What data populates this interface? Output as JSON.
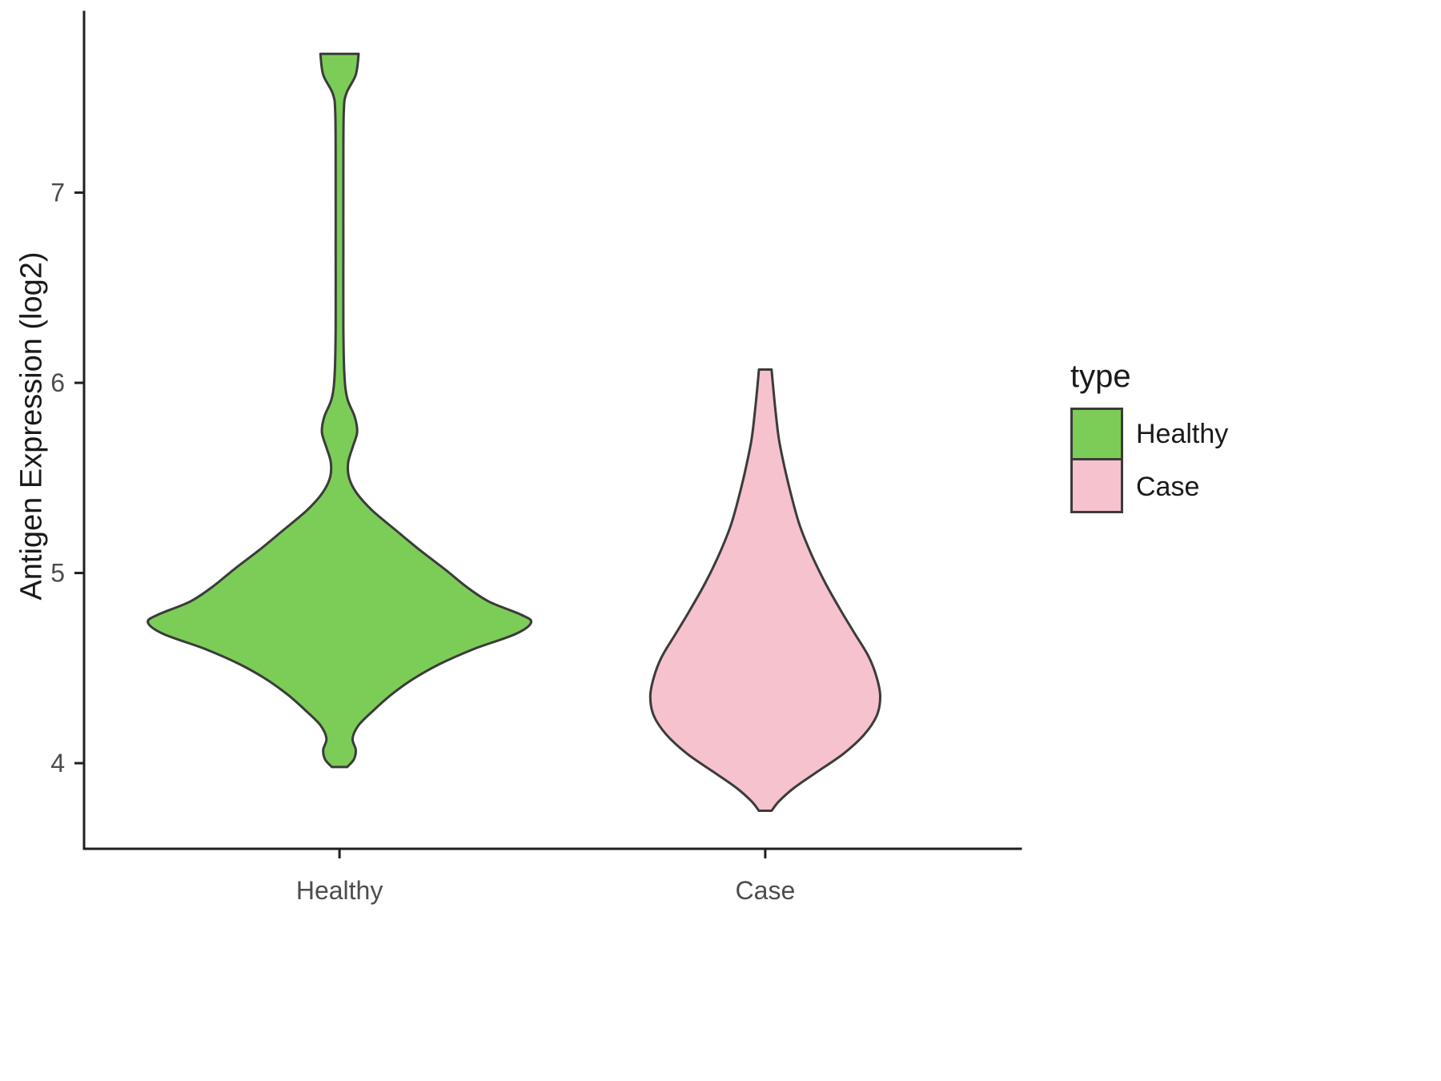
{
  "chart_data": {
    "type": "violin",
    "title": "",
    "xlabel": "",
    "ylabel": "Antigen Expression (log2)",
    "ylim": [
      3.55,
      7.95
    ],
    "yticks": [
      4,
      5,
      6,
      7
    ],
    "categories": [
      "Healthy",
      "Case"
    ],
    "grid": "off",
    "legend": {
      "title": "type",
      "position": "right"
    },
    "stroke": "#3b3b3b",
    "axis_color": "#1f1f1f",
    "tick_label_color": "#4d4d4d",
    "series": [
      {
        "name": "Healthy",
        "fill": "#7CCD57",
        "max_halfwidth": 0.45,
        "profile": [
          [
            7.73,
            0.1
          ],
          [
            7.62,
            0.085
          ],
          [
            7.52,
            0.035
          ],
          [
            7.42,
            0.022
          ],
          [
            7.1,
            0.02
          ],
          [
            6.7,
            0.02
          ],
          [
            6.3,
            0.02
          ],
          [
            6.05,
            0.025
          ],
          [
            5.92,
            0.04
          ],
          [
            5.82,
            0.08
          ],
          [
            5.74,
            0.092
          ],
          [
            5.66,
            0.068
          ],
          [
            5.58,
            0.045
          ],
          [
            5.5,
            0.05
          ],
          [
            5.42,
            0.09
          ],
          [
            5.33,
            0.17
          ],
          [
            5.22,
            0.3
          ],
          [
            5.12,
            0.42
          ],
          [
            5.02,
            0.55
          ],
          [
            4.93,
            0.66
          ],
          [
            4.85,
            0.78
          ],
          [
            4.78,
            0.95
          ],
          [
            4.74,
            1.0
          ],
          [
            4.68,
            0.92
          ],
          [
            4.6,
            0.7
          ],
          [
            4.52,
            0.52
          ],
          [
            4.44,
            0.38
          ],
          [
            4.36,
            0.27
          ],
          [
            4.28,
            0.18
          ],
          [
            4.2,
            0.1
          ],
          [
            4.13,
            0.068
          ],
          [
            4.07,
            0.085
          ],
          [
            4.02,
            0.075
          ],
          [
            3.98,
            0.04
          ]
        ]
      },
      {
        "name": "Case",
        "fill": "#F6C2CE",
        "max_halfwidth": 0.27,
        "profile": [
          [
            6.07,
            0.055
          ],
          [
            5.97,
            0.07
          ],
          [
            5.85,
            0.09
          ],
          [
            5.7,
            0.12
          ],
          [
            5.55,
            0.17
          ],
          [
            5.4,
            0.23
          ],
          [
            5.25,
            0.3
          ],
          [
            5.1,
            0.4
          ],
          [
            4.95,
            0.52
          ],
          [
            4.8,
            0.66
          ],
          [
            4.68,
            0.78
          ],
          [
            4.56,
            0.9
          ],
          [
            4.45,
            0.97
          ],
          [
            4.35,
            1.0
          ],
          [
            4.25,
            0.97
          ],
          [
            4.15,
            0.86
          ],
          [
            4.05,
            0.68
          ],
          [
            3.95,
            0.44
          ],
          [
            3.87,
            0.25
          ],
          [
            3.8,
            0.12
          ],
          [
            3.75,
            0.055
          ]
        ]
      }
    ]
  }
}
